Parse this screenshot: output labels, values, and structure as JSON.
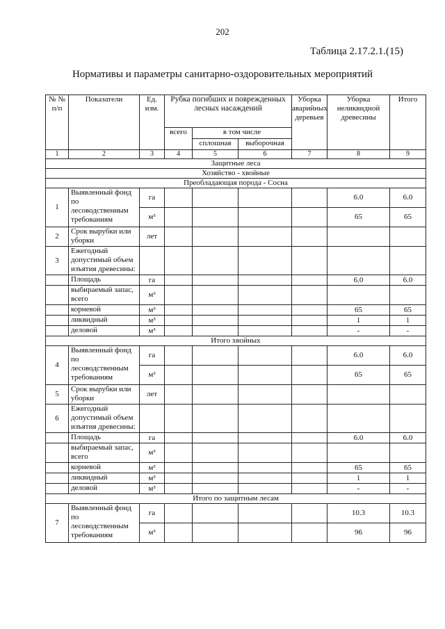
{
  "page_number": "202",
  "table_caption": "Таблица 2.17.2.1.(15)",
  "title": "Нормативы и параметры санитарно-оздоровительных мероприятий",
  "header": {
    "col1": "№ № п/п",
    "col2": "Показатели",
    "col3": "Ед. изм.",
    "col_group": "Рубка погибших и поврежденных лесных насаждений",
    "col4": "всего",
    "col_sub": "в том числе",
    "col5": "сплошная",
    "col6": "выборочная",
    "col7": "Уборка аварийных деревьев",
    "col8": "Уборка неликвидной древесины",
    "col9": "Итого",
    "numbers": [
      "1",
      "2",
      "3",
      "4",
      "5",
      "6",
      "7",
      "8",
      "9"
    ]
  },
  "body": [
    {
      "type": "section",
      "text": "Защитные леса"
    },
    {
      "type": "section",
      "text": "Хозяйство - хвойные"
    },
    {
      "type": "section",
      "text": "Преобладающая порода - Сосна"
    },
    {
      "type": "group",
      "num": "1",
      "label": "Выявленный фонд по лесоводственным требованиям",
      "rows": [
        {
          "unit": "га",
          "values": [
            "",
            "",
            "",
            "",
            "6.0",
            "6.0"
          ]
        },
        {
          "unit": "м³",
          "values": [
            "",
            "",
            "",
            "",
            "65",
            "65"
          ]
        }
      ]
    },
    {
      "type": "group",
      "num": "2",
      "label": "Срок вырубки или уборки",
      "rows": [
        {
          "unit": "лет",
          "values": [
            "",
            "",
            "",
            "",
            "",
            ""
          ]
        }
      ]
    },
    {
      "type": "group",
      "num": "3",
      "label": "Ежегодный допустимый объем изъятия древесины:",
      "rows": [
        {
          "unit": "",
          "values": [
            "",
            "",
            "",
            "",
            "",
            ""
          ]
        }
      ]
    },
    {
      "type": "group",
      "num": "",
      "label": "Площадь",
      "rows": [
        {
          "unit": "га",
          "values": [
            "",
            "",
            "",
            "",
            "6.0",
            "6.0"
          ]
        }
      ]
    },
    {
      "type": "group",
      "num": "",
      "label": "выбираемый запас, всего",
      "rows": [
        {
          "unit": "м³",
          "values": [
            "",
            "",
            "",
            "",
            "",
            ""
          ]
        }
      ]
    },
    {
      "type": "group",
      "num": "",
      "label": "корневой",
      "rows": [
        {
          "unit": "м³",
          "values": [
            "",
            "",
            "",
            "",
            "65",
            "65"
          ]
        }
      ]
    },
    {
      "type": "group",
      "num": "",
      "label": "ликвидный",
      "rows": [
        {
          "unit": "м³",
          "values": [
            "",
            "",
            "",
            "",
            "1",
            "1"
          ]
        }
      ]
    },
    {
      "type": "group",
      "num": "",
      "label": "деловой",
      "rows": [
        {
          "unit": "м³",
          "values": [
            "",
            "",
            "",
            "",
            "-",
            "-"
          ]
        }
      ]
    },
    {
      "type": "section",
      "text": "Итого хвойных"
    },
    {
      "type": "group",
      "num": "4",
      "label": "Выявленный фонд по лесоводственным требованиям",
      "rows": [
        {
          "unit": "га",
          "values": [
            "",
            "",
            "",
            "",
            "6.0",
            "6.0"
          ]
        },
        {
          "unit": "м³",
          "values": [
            "",
            "",
            "",
            "",
            "65",
            "65"
          ]
        }
      ]
    },
    {
      "type": "group",
      "num": "5",
      "label": "Срок вырубки или уборки",
      "rows": [
        {
          "unit": "лет",
          "values": [
            "",
            "",
            "",
            "",
            "",
            ""
          ]
        }
      ]
    },
    {
      "type": "group",
      "num": "6",
      "label": "Ежегодный допустимый объем изъятия древесины:",
      "rows": [
        {
          "unit": "",
          "values": [
            "",
            "",
            "",
            "",
            "",
            ""
          ]
        }
      ]
    },
    {
      "type": "group",
      "num": "",
      "label": "Площадь",
      "rows": [
        {
          "unit": "га",
          "values": [
            "",
            "",
            "",
            "",
            "6.0",
            "6.0"
          ]
        }
      ]
    },
    {
      "type": "group",
      "num": "",
      "label": "выбираемый запас, всего",
      "rows": [
        {
          "unit": "м³",
          "values": [
            "",
            "",
            "",
            "",
            "",
            ""
          ]
        }
      ]
    },
    {
      "type": "group",
      "num": "",
      "label": "корневой",
      "rows": [
        {
          "unit": "м³",
          "values": [
            "",
            "",
            "",
            "",
            "65",
            "65"
          ]
        }
      ]
    },
    {
      "type": "group",
      "num": "",
      "label": "ликвидный",
      "rows": [
        {
          "unit": "м³",
          "values": [
            "",
            "",
            "",
            "",
            "1",
            "1"
          ]
        }
      ]
    },
    {
      "type": "group",
      "num": "",
      "label": "деловой",
      "rows": [
        {
          "unit": "м³",
          "values": [
            "",
            "",
            "",
            "",
            "-",
            "-"
          ]
        }
      ]
    },
    {
      "type": "section",
      "text": "Итого по защитным лесам"
    },
    {
      "type": "group",
      "num": "7",
      "label": "Выявленный фонд по лесоводственным требованиям",
      "rows": [
        {
          "unit": "га",
          "values": [
            "",
            "",
            "",
            "",
            "10.3",
            "10.3"
          ]
        },
        {
          "unit": "м³",
          "values": [
            "",
            "",
            "",
            "",
            "96",
            "96"
          ]
        }
      ]
    }
  ]
}
